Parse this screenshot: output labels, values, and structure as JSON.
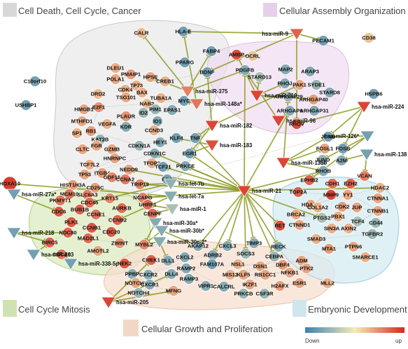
{
  "groups": [
    {
      "id": "death",
      "title": "Cell Death, Cell Cycle, Cancer",
      "color": "#d8d8d8",
      "box": "#cfcfcf"
    },
    {
      "id": "assembly",
      "title": "Cellular Assembly Organization",
      "color": "#e6cfe8",
      "box": "#d9b6df"
    },
    {
      "id": "mitosis",
      "title": "Cell Cycle Mitosis",
      "color": "#cfe3b2",
      "box": "#b7d68f"
    },
    {
      "id": "growth",
      "title": "Cellular Growth and Proliferation",
      "color": "#f3d7c6",
      "box": "#e9b99b"
    },
    {
      "id": "embryonic",
      "title": "Embryonic Development",
      "color": "#cfe6ee",
      "box": "#a9d2e0"
    }
  ],
  "legend": {
    "down": "Down",
    "up": "up",
    "low_color": "#3e7fb0",
    "mid_color": "#f3ecb8",
    "high_color": "#d7281e"
  },
  "colors": {
    "edge_target": "#8a9a1e",
    "edge_neutral": "#bdbdbd"
  },
  "mirnas": [
    {
      "id": "hsa-miR-9",
      "dir": "up",
      "v": 0.7
    },
    {
      "id": "hsa-miR-375",
      "dir": "up",
      "v": 0.55
    },
    {
      "id": "hsa-miR-148a*",
      "dir": "up",
      "v": 0.6
    },
    {
      "id": "hsa-miR-182",
      "dir": "up",
      "v": 0.85
    },
    {
      "id": "hsa-miR-183",
      "dir": "up",
      "v": 0.8
    },
    {
      "id": "hsa-miR-210",
      "dir": "up",
      "v": 0.85
    },
    {
      "id": "hsa-miR-96",
      "dir": "up",
      "v": 0.85
    },
    {
      "id": "hsa-miR-224",
      "dir": "up",
      "v": 0.85
    },
    {
      "id": "hsa-miR-126*",
      "dir": "down",
      "v": -0.7
    },
    {
      "id": "hsa-miR-138",
      "dir": "down",
      "v": -0.7
    },
    {
      "id": "hsa-miR-135b",
      "dir": "up",
      "v": 0.85
    },
    {
      "id": "hsa-miR-21",
      "dir": "up",
      "v": 0.85
    },
    {
      "id": "hsa-let-7b",
      "dir": "down",
      "v": -0.55
    },
    {
      "id": "hsa-let-7a",
      "dir": "down",
      "v": -0.6
    },
    {
      "id": "hsa-miR-1",
      "dir": "down",
      "v": -0.4
    },
    {
      "id": "hsa-miR-27a*",
      "dir": "down",
      "v": -0.7
    },
    {
      "id": "hsa-miR-30a*",
      "dir": "down",
      "v": -0.6
    },
    {
      "id": "hsa-miR-30b*",
      "dir": "down",
      "v": -0.6
    },
    {
      "id": "hsa-miR-30c-2*",
      "dir": "down",
      "v": -0.6
    },
    {
      "id": "hsa-miR-218",
      "dir": "down",
      "v": -0.7
    },
    {
      "id": "hsa-miR-203",
      "dir": "down",
      "v": -0.7
    },
    {
      "id": "hsa-miR-338-5p",
      "dir": "down",
      "v": -0.7
    },
    {
      "id": "hsa-miR-205",
      "dir": "up",
      "v": 0.85
    }
  ],
  "genes": [
    {
      "id": "CALR",
      "v": 0.25
    },
    {
      "id": "HLA-E",
      "v": -0.7
    },
    {
      "id": "PECAM1",
      "v": -0.7
    },
    {
      "id": "CD38",
      "v": 0.2
    },
    {
      "id": "FABP4",
      "v": -0.7
    },
    {
      "id": "AMBP",
      "v": 0.8
    },
    {
      "id": "OCRL",
      "v": 0.2
    },
    {
      "id": "PPARG",
      "v": -0.7
    },
    {
      "id": "BDNF",
      "v": -0.7
    },
    {
      "id": "PDGFB",
      "v": -0.6
    },
    {
      "id": "STARD13",
      "v": -0.4
    },
    {
      "id": "DLEU1",
      "v": 0.3
    },
    {
      "id": "PMAIP1",
      "v": 0.4
    },
    {
      "id": "POLA1",
      "v": 0.35
    },
    {
      "id": "TP73",
      "v": 0.3
    },
    {
      "id": "CREB1",
      "v": 0.3
    },
    {
      "id": "HPSE",
      "v": 0.35
    },
    {
      "id": "CDK4",
      "v": 0.3
    },
    {
      "id": "DRD2",
      "v": 0.25
    },
    {
      "id": "TSG101",
      "v": 0.35
    },
    {
      "id": "BAX",
      "v": 0.3
    },
    {
      "id": "NAB2",
      "v": 0.25
    },
    {
      "id": "PIM1",
      "v": -0.5
    },
    {
      "id": "C10orf10",
      "v": -0.7
    },
    {
      "id": "USHBP1",
      "v": -0.7
    },
    {
      "id": "HMGB1",
      "v": 0.35
    },
    {
      "id": "E2F1",
      "v": 0.45
    },
    {
      "id": "TUBA1A",
      "v": 0.3
    },
    {
      "id": "EPAS1",
      "v": -0.6
    },
    {
      "id": "MYC",
      "v": -0.7
    },
    {
      "id": "ID2",
      "v": -0.5
    },
    {
      "id": "ID1",
      "v": -0.6
    },
    {
      "id": "PLAUR",
      "v": 0.45
    },
    {
      "id": "MTHFD1",
      "v": 0.35
    },
    {
      "id": "VEGFA",
      "v": 0.3
    },
    {
      "id": "KDR",
      "v": -0.6
    },
    {
      "id": "CCND3",
      "v": 0.3
    },
    {
      "id": "SP1",
      "v": 0.3
    },
    {
      "id": "RB1",
      "v": 0.4
    },
    {
      "id": "KAT2B",
      "v": -0.5
    },
    {
      "id": "HEY1",
      "v": -0.6
    },
    {
      "id": "KLF4",
      "v": -0.7
    },
    {
      "id": "TNF",
      "v": -0.7
    },
    {
      "id": "EGR1",
      "v": -0.7
    },
    {
      "id": "CLTC",
      "v": 0.35
    },
    {
      "id": "FGR",
      "v": 0.35
    },
    {
      "id": "GZMB",
      "v": 0.35
    },
    {
      "id": "CDKN1A",
      "v": -0.5
    },
    {
      "id": "CDKN1C",
      "v": -0.6
    },
    {
      "id": "HNRNPC",
      "v": 0.35
    },
    {
      "id": "TFDP2",
      "v": 0.3
    },
    {
      "id": "TCF7L2",
      "v": 0.3
    },
    {
      "id": "ITGB4",
      "v": 0.4
    },
    {
      "id": "NEDD9",
      "v": 0.35
    },
    {
      "id": "TCF21",
      "v": -0.7
    },
    {
      "id": "PRKCE",
      "v": -0.6
    },
    {
      "id": "TP53",
      "v": 0.35
    },
    {
      "id": "GDF15",
      "v": 0.5
    },
    {
      "id": "CCNA2",
      "v": 0.6
    },
    {
      "id": "FOS",
      "v": -0.7
    },
    {
      "id": "HIST1H3A",
      "v": 0.4
    },
    {
      "id": "CD25C",
      "v": 0.4
    },
    {
      "id": "TRIP13",
      "v": 0.5
    },
    {
      "id": "SLC6A3",
      "v": 0.55
    },
    {
      "id": "KRT15",
      "v": 0.5
    },
    {
      "id": "NCAPG",
      "v": 0.55
    },
    {
      "id": "MAP2",
      "v": -0.6
    },
    {
      "id": "ARAP3",
      "v": -0.6
    },
    {
      "id": "RHOJ",
      "v": -0.6
    },
    {
      "id": "PAK1",
      "v": 0.35
    },
    {
      "id": "SYDE1",
      "v": -0.5
    },
    {
      "id": "TOP2A",
      "v": 0.7
    },
    {
      "id": "STARD8",
      "v": -0.6
    },
    {
      "id": "ARHGAP29",
      "v": -0.5
    },
    {
      "id": "ARHGAP40",
      "v": 0.4
    },
    {
      "id": "ARHGAP6",
      "v": -0.6
    },
    {
      "id": "ARHGAP31",
      "v": -0.6
    },
    {
      "id": "RHOV",
      "v": 0.8
    },
    {
      "id": "HSPB6",
      "v": -0.7
    },
    {
      "id": "JUNB",
      "v": -0.7
    },
    {
      "id": "FOSL1",
      "v": 0.35
    },
    {
      "id": "FOSB",
      "v": -0.7
    },
    {
      "id": "JUND",
      "v": -0.5
    },
    {
      "id": "A2M",
      "v": -0.6
    },
    {
      "id": "RHOB",
      "v": -0.6
    },
    {
      "id": "HOXA10",
      "v": 0.9
    },
    {
      "id": "MCM10",
      "v": 0.6
    },
    {
      "id": "CDC45",
      "v": 0.65
    },
    {
      "id": "PKMYT1",
      "v": 0.6
    },
    {
      "id": "AURKB",
      "v": 0.65
    },
    {
      "id": "BUB1B",
      "v": 0.7
    },
    {
      "id": "CDC6",
      "v": 0.75
    },
    {
      "id": "CCNE1",
      "v": 0.6
    },
    {
      "id": "CCNB2",
      "v": 0.7
    },
    {
      "id": "PLK1",
      "v": 0.75
    },
    {
      "id": "UHRF1",
      "v": 0.65
    },
    {
      "id": "CENPF",
      "v": 0.65
    },
    {
      "id": "NDC80",
      "v": 0.7
    },
    {
      "id": "CCNB1",
      "v": 0.75
    },
    {
      "id": "CDC20",
      "v": 0.75
    },
    {
      "id": "MAD2L1",
      "v": 0.65
    },
    {
      "id": "ZWINT",
      "v": 0.45
    },
    {
      "id": "MYBL2",
      "v": 0.5
    },
    {
      "id": "BIRC5",
      "v": 0.7
    },
    {
      "id": "AMOTL2",
      "v": 0.35
    },
    {
      "id": "CDCA8",
      "v": 0.6
    },
    {
      "id": "NEK2",
      "v": 0.75
    },
    {
      "id": "CHEK1",
      "v": 0.7
    },
    {
      "id": "VCAN",
      "v": 0.55
    },
    {
      "id": "HDAC2",
      "v": 0.3
    },
    {
      "id": "EPHB2",
      "v": 0.7
    },
    {
      "id": "CDH1",
      "v": 0.65
    },
    {
      "id": "EZH2",
      "v": 0.7
    },
    {
      "id": "CTNNA1",
      "v": 0.35
    },
    {
      "id": "MMP9",
      "v": 0.85
    },
    {
      "id": "YY1",
      "v": 0.35
    },
    {
      "id": "HDAC1",
      "v": 0.35
    },
    {
      "id": "COL1A2",
      "v": 0.3
    },
    {
      "id": "CDK2",
      "v": 0.4
    },
    {
      "id": "JUP",
      "v": 0.35
    },
    {
      "id": "CTNNB1",
      "v": 0.35
    },
    {
      "id": "BRCA2",
      "v": 0.35
    },
    {
      "id": "PTGS2",
      "v": -0.4
    },
    {
      "id": "PBX1",
      "v": 0.3
    },
    {
      "id": "TCF4",
      "v": -0.4
    },
    {
      "id": "CD44",
      "v": -0.5
    },
    {
      "id": "CTNND1",
      "v": 0.35
    },
    {
      "id": "SIN3A",
      "v": 0.3
    },
    {
      "id": "AXIN2",
      "v": 0.3
    },
    {
      "id": "TGFBR2",
      "v": -0.5
    },
    {
      "id": "SMAD3",
      "v": 0.3
    },
    {
      "id": "MTA1",
      "v": 0.4
    },
    {
      "id": "PTPN6",
      "v": 0.35
    },
    {
      "id": "SMARCE1",
      "v": 0.3
    },
    {
      "id": "RET",
      "v": 0.8
    },
    {
      "id": "AKAP12",
      "v": -0.6
    },
    {
      "id": "CXCL3",
      "v": -0.6
    },
    {
      "id": "TIMP3",
      "v": -0.6
    },
    {
      "id": "RECK",
      "v": -0.6
    },
    {
      "id": "ADRB2",
      "v": -0.6
    },
    {
      "id": "SOCS3",
      "v": -0.5
    },
    {
      "id": "CEBPA",
      "v": -0.5
    },
    {
      "id": "ADM",
      "v": 0.35
    },
    {
      "id": "CXCL2",
      "v": -0.6
    },
    {
      "id": "FAM107A",
      "v": -0.7
    },
    {
      "id": "NSL1",
      "v": 0.3
    },
    {
      "id": "DSN1",
      "v": 0.35
    },
    {
      "id": "DBF4",
      "v": 0.4
    },
    {
      "id": "PTK2",
      "v": 0.35
    },
    {
      "id": "DLL1",
      "v": -0.6
    },
    {
      "id": "RAMP2",
      "v": -0.6
    },
    {
      "id": "MIS12",
      "v": 0.3
    },
    {
      "id": "KLF5",
      "v": 0.35
    },
    {
      "id": "RB1CC1",
      "v": 0.35
    },
    {
      "id": "NFKB1",
      "v": 0.35
    },
    {
      "id": "IKZF1",
      "v": 0.35
    },
    {
      "id": "H2AFX",
      "v": 0.4
    },
    {
      "id": "ESR1",
      "v": 0.35
    },
    {
      "id": "MLL2",
      "v": 0.3
    },
    {
      "id": "PPBP",
      "v": -0.6
    },
    {
      "id": "CXCR2",
      "v": -0.6
    },
    {
      "id": "NOTCH1",
      "v": 0.35
    },
    {
      "id": "CXCR1",
      "v": -0.6
    },
    {
      "id": "NOTCH4",
      "v": -0.5
    },
    {
      "id": "DLL4",
      "v": -0.6
    },
    {
      "id": "RAMP3",
      "v": -0.6
    },
    {
      "id": "VIPR1",
      "v": -0.6
    },
    {
      "id": "CALCRL",
      "v": -0.6
    },
    {
      "id": "PRKCB",
      "v": -0.5
    },
    {
      "id": "CSF3R",
      "v": -0.5
    },
    {
      "id": "MFNG",
      "v": 0.35
    }
  ],
  "edges": [
    [
      "hsa-miR-9",
      "HLA-E"
    ],
    [
      "hsa-miR-9",
      "PECAM1"
    ],
    [
      "hsa-miR-9",
      "RHOV"
    ],
    [
      "hsa-miR-9",
      "BDNF"
    ],
    [
      "hsa-miR-375",
      "FABP4"
    ],
    [
      "hsa-miR-375",
      "PDGFB"
    ],
    [
      "hsa-miR-375",
      "HPSE"
    ],
    [
      "hsa-miR-375",
      "CALR"
    ],
    [
      "hsa-miR-148a*",
      "HLA-E"
    ],
    [
      "hsa-miR-148a*",
      "MYC"
    ],
    [
      "hsa-miR-182",
      "BDNF"
    ],
    [
      "hsa-miR-182",
      "EGR1"
    ],
    [
      "hsa-miR-182",
      "TNF"
    ],
    [
      "hsa-miR-182",
      "PAK1"
    ],
    [
      "hsa-miR-210",
      "AMBP"
    ],
    [
      "hsa-miR-210",
      "STARD13"
    ],
    [
      "hsa-miR-210",
      "RHOJ"
    ],
    [
      "hsa-miR-210",
      "ARHGAP40"
    ],
    [
      "hsa-miR-224",
      "RHOV"
    ],
    [
      "hsa-miR-224",
      "JUNB"
    ],
    [
      "hsa-miR-224",
      "FOSB"
    ],
    [
      "hsa-miR-96",
      "PDGFB"
    ],
    [
      "hsa-miR-96",
      "ARHGAP6"
    ],
    [
      "hsa-miR-126*",
      "JUNB"
    ],
    [
      "hsa-miR-126*",
      "EPHB2"
    ],
    [
      "hsa-miR-126*",
      "JUND"
    ],
    [
      "hsa-miR-138",
      "VCAN"
    ],
    [
      "hsa-miR-138",
      "A2M"
    ],
    [
      "hsa-miR-135b",
      "JUNB"
    ],
    [
      "hsa-miR-135b",
      "FOSL1"
    ],
    [
      "hsa-miR-135b",
      "ARHGAP29"
    ],
    [
      "hsa-miR-135b",
      "RHOB"
    ],
    [
      "hsa-miR-21",
      "TNF"
    ],
    [
      "hsa-miR-21",
      "EGR1"
    ],
    [
      "hsa-miR-21",
      "TCF21"
    ],
    [
      "hsa-miR-21",
      "FOS"
    ],
    [
      "hsa-miR-21",
      "PRKCE"
    ],
    [
      "hsa-miR-21",
      "CDKN1C"
    ],
    [
      "hsa-miR-21",
      "PDGFB"
    ],
    [
      "hsa-miR-21",
      "ARHGAP6"
    ],
    [
      "hsa-miR-21",
      "HDAC2"
    ],
    [
      "hsa-miR-21",
      "TIMP3"
    ],
    [
      "hsa-miR-21",
      "RECK"
    ],
    [
      "hsa-miR-21",
      "SOCS3"
    ],
    [
      "hsa-miR-21",
      "CXCL3"
    ],
    [
      "hsa-miR-21",
      "AKAP12"
    ],
    [
      "hsa-miR-21",
      "NCAPG"
    ],
    [
      "hsa-miR-21",
      "TRIP13"
    ],
    [
      "hsa-miR-21",
      "RHOB"
    ],
    [
      "hsa-miR-21",
      "RET"
    ],
    [
      "hsa-miR-21",
      "PTGS2"
    ],
    [
      "hsa-miR-21",
      "CEBPA"
    ],
    [
      "hsa-miR-21",
      "ADRB2"
    ],
    [
      "hsa-miR-21",
      "NEDD9"
    ],
    [
      "hsa-miR-183",
      "EGR1"
    ],
    [
      "hsa-miR-183",
      "KLF4"
    ],
    [
      "hsa-let-7b",
      "CDC45"
    ],
    [
      "hsa-let-7b",
      "TRIP13"
    ],
    [
      "hsa-let-7a",
      "HOXA10"
    ],
    [
      "hsa-let-7a",
      "NCAPG"
    ],
    [
      "hsa-let-7a",
      "CCNB2"
    ],
    [
      "hsa-miR-1",
      "UHRF1"
    ],
    [
      "hsa-miR-1",
      "CENPF"
    ],
    [
      "hsa-miR-27a*",
      "HOXA10"
    ],
    [
      "hsa-miR-27a*",
      "CDC6"
    ],
    [
      "hsa-miR-30a*",
      "MYBL2"
    ],
    [
      "hsa-miR-30b*",
      "MYBL2"
    ],
    [
      "hsa-miR-30c-2*",
      "MYBL2"
    ],
    [
      "hsa-miR-30b*",
      "AKAP12"
    ],
    [
      "hsa-miR-30c-2*",
      "DLL1"
    ],
    [
      "hsa-miR-218",
      "NDC80"
    ],
    [
      "hsa-miR-218",
      "BIRC5"
    ],
    [
      "hsa-miR-203",
      "BIRC5"
    ],
    [
      "hsa-miR-338-5p",
      "CDCA8"
    ],
    [
      "hsa-miR-205",
      "MFNG"
    ],
    [
      "hsa-miR-205",
      "DLL4"
    ],
    [
      "hsa-miR-205",
      "CHEK1"
    ]
  ],
  "neutral_edges": [
    [
      "CDC6",
      "PLK1"
    ],
    [
      "PLK1",
      "CCNB1"
    ],
    [
      "CCNB1",
      "CDC20"
    ],
    [
      "CDC20",
      "MAD2L1"
    ],
    [
      "BUB1B",
      "CCNB2"
    ],
    [
      "MCM10",
      "CDC45"
    ],
    [
      "CDC45",
      "CCNE1"
    ],
    [
      "AURKB",
      "CCNB2"
    ],
    [
      "NDC80",
      "BIRC5"
    ],
    [
      "BIRC5",
      "CDCA8"
    ],
    [
      "ZWINT",
      "MAD2L1"
    ],
    [
      "PKMYT1",
      "CDC6"
    ],
    [
      "NEK2",
      "CHEK1"
    ],
    [
      "MYC",
      "E2F1"
    ],
    [
      "E2F1",
      "RB1"
    ],
    [
      "RB1",
      "CDKN1A"
    ],
    [
      "CDKN1A",
      "TP53"
    ],
    [
      "TP53",
      "GDF15"
    ],
    [
      "TP53",
      "CDKN1C"
    ],
    [
      "MYC",
      "ID2"
    ],
    [
      "ID1",
      "HEY1"
    ],
    [
      "VEGFA",
      "KDR"
    ],
    [
      "EPAS1",
      "VEGFA"
    ],
    [
      "CREB1",
      "BDNF"
    ],
    [
      "KLF4",
      "CDKN1A"
    ],
    [
      "EGR1",
      "TNF"
    ],
    [
      "FOS",
      "JUNB"
    ],
    [
      "JUNB",
      "FOSB"
    ],
    [
      "JUND",
      "FOSL1"
    ],
    [
      "A2M",
      "RHOB"
    ],
    [
      "MAP2",
      "RHOJ"
    ],
    [
      "RHOJ",
      "ARHGAP29"
    ],
    [
      "PAK1",
      "ARHGAP29"
    ],
    [
      "ARHGAP6",
      "RHOV"
    ],
    [
      "ARHGAP31",
      "STARD8"
    ],
    [
      "SYDE1",
      "ARAP3"
    ],
    [
      "ARHGAP40",
      "RHOV"
    ],
    [
      "CDH1",
      "CTNNB1"
    ],
    [
      "CTNNB1",
      "TCF4"
    ],
    [
      "CTNNB1",
      "AXIN2"
    ],
    [
      "CTNND1",
      "CDH1"
    ],
    [
      "JUP",
      "CTNNB1"
    ],
    [
      "EZH2",
      "HDAC1"
    ],
    [
      "HDAC1",
      "HDAC2"
    ],
    [
      "YY1",
      "HDAC1"
    ],
    [
      "SIN3A",
      "HDAC1"
    ],
    [
      "MMP9",
      "TOP2A"
    ],
    [
      "SMAD3",
      "TGFBR2"
    ],
    [
      "CD44",
      "TGFBR2"
    ],
    [
      "BRCA2",
      "PTGS2"
    ],
    [
      "MTA1",
      "PTPN6"
    ],
    [
      "CXCL2",
      "CXCR2"
    ],
    [
      "CXCL3",
      "CXCR2"
    ],
    [
      "CXCR1",
      "PPBP"
    ],
    [
      "PPBP",
      "CXCR2"
    ],
    [
      "NOTCH1",
      "DLL1"
    ],
    [
      "NOTCH4",
      "DLL4"
    ],
    [
      "NOTCH1",
      "MFNG"
    ],
    [
      "RAMP2",
      "CALCRL"
    ],
    [
      "RAMP3",
      "CALCRL"
    ],
    [
      "ADM",
      "RAMP2"
    ],
    [
      "MIS12",
      "DSN1"
    ],
    [
      "DSN1",
      "NSL1"
    ],
    [
      "KLF5",
      "NFKB1"
    ],
    [
      "ESR1",
      "H2AFX"
    ],
    [
      "RB1CC1",
      "PTK2"
    ],
    [
      "DBF4",
      "MIS12"
    ],
    [
      "IKZF1",
      "CEBPA"
    ]
  ]
}
